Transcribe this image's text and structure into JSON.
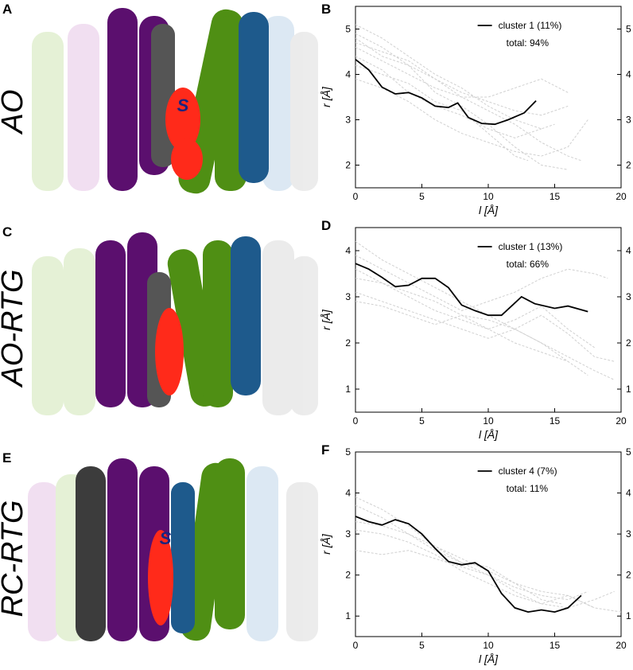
{
  "panels": {
    "A": "A",
    "B": "B",
    "C": "C",
    "D": "D",
    "E": "E",
    "F": "F"
  },
  "row_labels": [
    "AO",
    "AO-RTG",
    "RC-RTG"
  ],
  "molecule_label": "S",
  "colors": {
    "purple": "#5b0f6e",
    "green": "#4f8f14",
    "blue": "#1e5a8c",
    "gray": "#555555",
    "red": "#ff2a1a",
    "ghost": "#d0d0d0",
    "cluster_line": "#000000"
  },
  "chart_data": [
    {
      "type": "line",
      "panel": "B",
      "xlabel": "l [Å]",
      "ylabel": "r [Å]",
      "xlim": [
        0,
        20
      ],
      "ylim": [
        1.5,
        5.5
      ],
      "xticks": [
        0,
        5,
        10,
        15,
        20
      ],
      "yticks": [
        2,
        3,
        4,
        5
      ],
      "legend": {
        "position": "top-right",
        "entry": "cluster 1 (11%)",
        "total": "total: 94%"
      },
      "series": [
        {
          "name": "cluster 1 (11%)",
          "style": "solid",
          "x": [
            0,
            1,
            2,
            3,
            4,
            5,
            6,
            7,
            7.7,
            8.5,
            9.5,
            10.5,
            11.5,
            12.7,
            13.6
          ],
          "y": [
            4.33,
            4.1,
            3.72,
            3.57,
            3.6,
            3.48,
            3.3,
            3.27,
            3.37,
            3.05,
            2.92,
            2.9,
            3.0,
            3.15,
            3.42
          ]
        },
        {
          "style": "dashed",
          "x": [
            0,
            2,
            4,
            6,
            8,
            10,
            12,
            14,
            16
          ],
          "y": [
            4.9,
            4.6,
            4.2,
            3.9,
            3.6,
            3.4,
            3.2,
            3.1,
            3.3
          ]
        },
        {
          "style": "dashed",
          "x": [
            0,
            2,
            4,
            6,
            8,
            10,
            12,
            14,
            15
          ],
          "y": [
            5.1,
            4.8,
            4.4,
            4.0,
            3.7,
            3.3,
            3.0,
            2.8,
            2.9
          ]
        },
        {
          "style": "dashed",
          "x": [
            0,
            2,
            4,
            6,
            8,
            10,
            12,
            14,
            16,
            17
          ],
          "y": [
            4.6,
            4.3,
            4.0,
            3.7,
            3.5,
            3.2,
            2.9,
            2.5,
            2.2,
            2.1
          ]
        },
        {
          "style": "dashed",
          "x": [
            0,
            2,
            4,
            6,
            8,
            10,
            12,
            14,
            16
          ],
          "y": [
            4.8,
            4.4,
            4.2,
            3.6,
            3.3,
            2.9,
            2.4,
            2.0,
            1.9
          ]
        },
        {
          "style": "dashed",
          "x": [
            0,
            2,
            4,
            6,
            8,
            10,
            12,
            14
          ],
          "y": [
            4.4,
            4.1,
            3.6,
            3.3,
            3.1,
            2.8,
            2.6,
            2.8
          ]
        },
        {
          "style": "dashed",
          "x": [
            0,
            2,
            4,
            6,
            8,
            10,
            12,
            14,
            16
          ],
          "y": [
            4.7,
            4.5,
            4.3,
            3.9,
            3.5,
            3.5,
            3.7,
            3.9,
            3.6
          ]
        },
        {
          "style": "dashed",
          "x": [
            0,
            2,
            4,
            6,
            8,
            10,
            12,
            14,
            16,
            17.5
          ],
          "y": [
            3.9,
            3.7,
            3.4,
            3.0,
            2.7,
            2.5,
            2.3,
            2.2,
            2.4,
            3.0
          ]
        },
        {
          "style": "dashed",
          "x": [
            0,
            2,
            4,
            6,
            8,
            10,
            12,
            13
          ],
          "y": [
            4.2,
            4.0,
            3.8,
            3.4,
            3.2,
            2.7,
            2.2,
            2.1
          ]
        }
      ]
    },
    {
      "type": "line",
      "panel": "D",
      "xlabel": "l [Å]",
      "ylabel": "r [Å]",
      "xlim": [
        0,
        20
      ],
      "ylim": [
        0.5,
        4.5
      ],
      "xticks": [
        0,
        5,
        10,
        15,
        20
      ],
      "yticks": [
        1,
        2,
        3,
        4
      ],
      "legend": {
        "position": "top-right",
        "entry": "cluster 1 (13%)",
        "total": "total: 66%"
      },
      "series": [
        {
          "name": "cluster 1 (13%)",
          "style": "solid",
          "x": [
            0,
            1,
            2,
            3,
            4,
            5,
            6,
            7,
            8,
            9,
            10,
            11,
            12.5,
            13.5,
            15,
            16,
            17.5
          ],
          "y": [
            3.72,
            3.6,
            3.42,
            3.22,
            3.25,
            3.4,
            3.4,
            3.2,
            2.82,
            2.7,
            2.6,
            2.6,
            3.0,
            2.85,
            2.75,
            2.8,
            2.68
          ]
        },
        {
          "style": "dashed",
          "x": [
            0,
            2,
            4,
            6,
            8,
            10,
            12,
            14,
            16,
            18,
            19.5
          ],
          "y": [
            4.2,
            3.8,
            3.5,
            3.2,
            2.9,
            2.6,
            2.3,
            2.0,
            1.7,
            1.4,
            1.2
          ]
        },
        {
          "style": "dashed",
          "x": [
            0,
            2,
            4,
            6,
            8,
            10,
            12,
            14,
            16,
            18
          ],
          "y": [
            3.4,
            3.3,
            3.0,
            2.7,
            2.5,
            2.3,
            2.5,
            2.8,
            2.3,
            1.9
          ]
        },
        {
          "style": "dashed",
          "x": [
            0,
            2,
            4,
            6,
            8,
            10,
            12,
            14,
            16,
            17.5
          ],
          "y": [
            3.1,
            2.9,
            2.7,
            2.5,
            2.3,
            2.1,
            2.3,
            2.0,
            1.6,
            1.3
          ]
        },
        {
          "style": "dashed",
          "x": [
            0,
            2,
            4,
            6,
            8,
            10,
            12,
            14,
            16,
            18,
            19
          ],
          "y": [
            3.9,
            3.6,
            3.3,
            3.0,
            2.7,
            2.9,
            3.1,
            3.4,
            3.6,
            3.5,
            3.4
          ]
        },
        {
          "style": "dashed",
          "x": [
            0,
            2,
            4,
            6,
            8,
            10,
            12,
            14,
            16
          ],
          "y": [
            2.9,
            2.8,
            2.6,
            2.4,
            2.6,
            2.3,
            2.0,
            1.8,
            1.6
          ]
        },
        {
          "style": "dashed",
          "x": [
            0,
            2,
            4,
            6,
            8,
            10,
            12,
            14,
            16,
            18,
            19.5
          ],
          "y": [
            3.6,
            3.3,
            3.1,
            2.9,
            2.6,
            2.5,
            2.3,
            2.6,
            2.2,
            1.7,
            1.6
          ]
        }
      ]
    },
    {
      "type": "line",
      "panel": "F",
      "xlabel": "l [Å]",
      "ylabel": "r [Å]",
      "xlim": [
        0,
        20
      ],
      "ylim": [
        0.5,
        5
      ],
      "xticks": [
        0,
        5,
        10,
        15,
        20
      ],
      "yticks": [
        1,
        2,
        3,
        4,
        5
      ],
      "legend": {
        "position": "top-right",
        "entry": "cluster 4 (7%)",
        "total": "total: 11%"
      },
      "series": [
        {
          "name": "cluster 4 (7%)",
          "style": "solid",
          "x": [
            0,
            1,
            2,
            3,
            4,
            5,
            6,
            7,
            8,
            9,
            10,
            11,
            12,
            13,
            14,
            15,
            16,
            17
          ],
          "y": [
            3.43,
            3.3,
            3.22,
            3.35,
            3.25,
            3.0,
            2.65,
            2.33,
            2.25,
            2.3,
            2.1,
            1.55,
            1.2,
            1.1,
            1.15,
            1.1,
            1.2,
            1.5
          ]
        },
        {
          "style": "dashed",
          "x": [
            0,
            2,
            4,
            6,
            8,
            10,
            12,
            14,
            16,
            18,
            19.5
          ],
          "y": [
            3.9,
            3.6,
            3.2,
            2.7,
            2.3,
            2.0,
            1.6,
            1.3,
            1.2,
            1.4,
            1.6
          ]
        },
        {
          "style": "dashed",
          "x": [
            0,
            2,
            4,
            6,
            8,
            10,
            12,
            14,
            16,
            18
          ],
          "y": [
            3.1,
            3.0,
            2.8,
            2.5,
            2.1,
            1.8,
            1.5,
            1.3,
            1.5,
            1.2
          ]
        },
        {
          "style": "dashed",
          "x": [
            0,
            2,
            4,
            6,
            8,
            10,
            12,
            14,
            16,
            17.5
          ],
          "y": [
            2.6,
            2.5,
            2.6,
            2.4,
            2.2,
            2.0,
            1.7,
            1.5,
            1.4,
            1.6
          ]
        },
        {
          "style": "dashed",
          "x": [
            0,
            2,
            4,
            6,
            8,
            10,
            12,
            14,
            15.5
          ],
          "y": [
            3.3,
            3.2,
            3.0,
            2.6,
            2.3,
            2.2,
            1.8,
            1.4,
            1.3
          ]
        },
        {
          "style": "dashed",
          "x": [
            0,
            2,
            4,
            6,
            8,
            10,
            12,
            14,
            16,
            18,
            20
          ],
          "y": [
            3.7,
            3.4,
            3.0,
            2.7,
            2.4,
            2.1,
            1.8,
            1.6,
            1.5,
            1.2,
            1.1
          ]
        }
      ]
    }
  ]
}
